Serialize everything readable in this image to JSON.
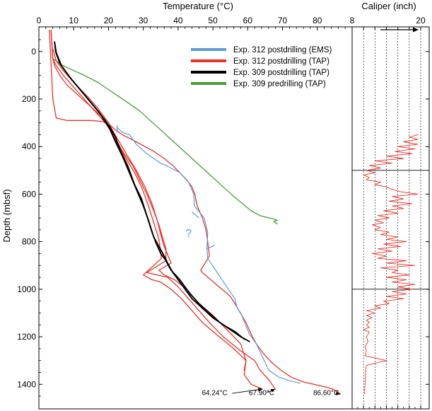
{
  "chart_data": [
    {
      "type": "line",
      "xlabel": "Temperature (°C)",
      "ylabel": "Depth (mbsf)",
      "xlim": [
        0,
        90
      ],
      "ylim": [
        1480,
        -90
      ],
      "x_ticks": [
        0,
        10,
        20,
        30,
        40,
        50,
        60,
        70,
        80
      ],
      "y_ticks": [
        0,
        200,
        400,
        600,
        800,
        1000,
        1200,
        1400
      ],
      "x_axis_position": "top",
      "grid": false,
      "legend_placement": "top-right",
      "series": [
        {
          "name": "Exp. 312 postdrilling (EMS)",
          "color": "#5b9bd5",
          "x": [
            22.5,
            24,
            26,
            28,
            31,
            35,
            38,
            40.5,
            43,
            44.5,
            44.7,
            47.5,
            48.5,
            48.3,
            48.5,
            56.3,
            57,
            58,
            60.5,
            62.5,
            66,
            69,
            72,
            75
          ],
          "y": [
            320,
            340,
            350,
            390,
            430,
            470,
            490,
            510,
            550,
            600,
            650,
            700,
            760,
            830,
            870,
            1040,
            1080,
            1100,
            1190,
            1230,
            1340,
            1370,
            1385,
            1395
          ]
        },
        {
          "name": "Exp. 312 postdrilling (TAP)",
          "color": "#e8312a",
          "lines": [
            {
              "x": [
                3.5,
                4,
                4.5,
                6,
                8,
                11,
                14,
                17,
                19.5,
                20.5,
                22,
                24,
                28,
                33,
                36,
                38.5,
                40.5,
                42.5,
                44,
                44.8,
                45.5,
                47,
                48,
                48.5,
                49,
                46.5,
                47,
                51,
                55,
                56.3,
                57.5,
                59.5,
                61,
                62.5,
                64.5,
                67,
                69.5,
                72.5,
                76,
                79,
                82,
                84.5,
                86.6
              ],
              "y": [
                -90,
                30,
                60,
                100,
                140,
                180,
                220,
                260,
                290,
                310,
                330,
                350,
                380,
                420,
                450,
                480,
                510,
                540,
                570,
                600,
                650,
                700,
                750,
                800,
                860,
                920,
                930,
                980,
                1030,
                1060,
                1090,
                1140,
                1190,
                1230,
                1270,
                1310,
                1340,
                1370,
                1390,
                1400,
                1410,
                1420,
                1440
              ]
            },
            {
              "x": [
                3.5,
                4,
                5,
                7,
                10,
                13,
                16,
                18.5,
                20,
                21,
                22.5,
                24.5,
                27,
                29,
                31,
                33,
                34.5,
                35.5,
                36.5,
                36.5,
                31,
                34,
                37,
                40,
                43,
                46,
                49,
                53,
                58,
                62,
                63.5,
                66,
                67.9
              ],
              "y": [
                -90,
                30,
                60,
                100,
                150,
                200,
                250,
                290,
                310,
                340,
                380,
                430,
                480,
                540,
                600,
                670,
                730,
                780,
                830,
                880,
                930,
                940,
                950,
                990,
                1040,
                1090,
                1140,
                1200,
                1260,
                1300,
                1340,
                1380,
                1420
              ]
            },
            {
              "x": [
                3,
                3.5,
                4,
                5,
                8,
                15,
                18.5,
                20,
                21.5,
                23,
                25,
                27.5,
                29.5,
                31.5,
                33,
                34.5,
                35.2,
                33,
                30,
                32.5,
                35,
                38,
                41,
                44,
                47,
                51,
                56,
                59.5,
                59,
                61,
                64.24
              ],
              "y": [
                -90,
                50,
                200,
                280,
                290,
                290,
                295,
                310,
                360,
                400,
                450,
                510,
                570,
                650,
                720,
                790,
                870,
                900,
                940,
                960,
                970,
                1000,
                1040,
                1090,
                1140,
                1190,
                1250,
                1300,
                1360,
                1400,
                1420
              ]
            },
            {
              "x": [
                4,
                5,
                7,
                10,
                14,
                17,
                19,
                20,
                21.5,
                23.5,
                25.5,
                28,
                30.5,
                32.5,
                34,
                35,
                36,
                38,
                34.5,
                36,
                39,
                42.5,
                46,
                50,
                54,
                58,
                59.5,
                59
              ],
              "y": [
                -10,
                40,
                80,
                130,
                190,
                240,
                280,
                300,
                340,
                390,
                440,
                500,
                570,
                640,
                710,
                770,
                820,
                890,
                920,
                940,
                960,
                1000,
                1060,
                1110,
                1170,
                1230,
                1300,
                1340
              ]
            }
          ]
        },
        {
          "name": "Exp. 309 postdrilling (TAP)",
          "color": "#000000",
          "lines": [
            {
              "x": [
                4.5,
                4.8,
                6,
                9,
                13,
                17,
                20.5,
                22,
                23.5,
                25.5,
                27.5,
                29.5,
                31,
                32.5,
                33.5,
                35,
                36.5,
                37.2,
                38,
                40.5,
                43.5,
                46,
                49,
                52,
                55,
                58,
                60.5
              ],
              "y": [
                -40,
                0,
                50,
                110,
                180,
                250,
                320,
                360,
                420,
                480,
                560,
                620,
                690,
                760,
                800,
                850,
                880,
                900,
                920,
                960,
                1020,
                1060,
                1100,
                1140,
                1170,
                1200,
                1220
              ]
            },
            {
              "x": [
                4.5,
                5,
                6.5,
                9.5,
                13.5,
                17.5,
                20.5,
                22,
                24,
                26,
                28,
                30,
                31.5,
                33,
                34.5,
                36,
                37,
                38.5,
                41,
                44,
                47,
                50,
                53,
                56.5,
                59
              ],
              "y": [
                -40,
                5,
                60,
                120,
                190,
                260,
                330,
                380,
                440,
                510,
                580,
                650,
                710,
                780,
                820,
                860,
                890,
                930,
                980,
                1040,
                1080,
                1120,
                1150,
                1180,
                1210
              ]
            }
          ]
        },
        {
          "name": "Exp. 309 predrilling (TAP)",
          "color": "#4a9a3a",
          "x": [
            4,
            7,
            10,
            13,
            17,
            20,
            23,
            26,
            29,
            32,
            35,
            38,
            41,
            44,
            47,
            50,
            53,
            56,
            58.5,
            61,
            63.5,
            66,
            67.5,
            68.5,
            67.5,
            68,
            68.5
          ],
          "y": [
            30,
            60,
            80,
            100,
            130,
            160,
            190,
            220,
            250,
            290,
            330,
            370,
            410,
            450,
            490,
            530,
            570,
            610,
            640,
            670,
            690,
            700,
            705,
            710,
            715,
            720,
            725
          ]
        }
      ],
      "annotations": [
        {
          "text": "?",
          "x": 43,
          "y": 780,
          "color": "#5b9bd5"
        },
        {
          "text": "64.24°C",
          "x": 50.5,
          "y": 1445
        },
        {
          "text": "67.90°C",
          "x": 64,
          "y": 1445
        },
        {
          "text": "86.60°C",
          "x": 82.5,
          "y": 1445
        }
      ]
    },
    {
      "type": "line",
      "xlabel": "Caliper (inch)",
      "xlim": [
        8,
        20
      ],
      "ylim": [
        1480,
        -90
      ],
      "x_ticks": [
        8,
        20
      ],
      "x_axis_position": "top",
      "grid": true,
      "series": [
        {
          "color": "#e8312a",
          "x": [
            19.5,
            18,
            19.5,
            17,
            19.5,
            16,
            19,
            15.5,
            18.5,
            14,
            17,
            12,
            15,
            11,
            13,
            10.5,
            12,
            10,
            11,
            10.5,
            13,
            12,
            14,
            15,
            16.5,
            19.5,
            15,
            17,
            14.5,
            18.5,
            15,
            17,
            13.5,
            16,
            12.5,
            14.5,
            12,
            13.5,
            11.5,
            13,
            12,
            14.5,
            13,
            16,
            14,
            17.5,
            13.5,
            16.5,
            12.5,
            15,
            11.5,
            14,
            12.5,
            17.5,
            14,
            19,
            13,
            16,
            15,
            18,
            14,
            17.5,
            15,
            19,
            16,
            18.5,
            15,
            17.5,
            14,
            17,
            13.5,
            14.5,
            12,
            13,
            10.5,
            12,
            10.5,
            11.5,
            10.5,
            11,
            10.5,
            11,
            10,
            11,
            10.5,
            10.8,
            10.3,
            10.5,
            10.3,
            14,
            10.5,
            10.4,
            10.3,
            10.2,
            10.2
          ],
          "y": [
            350,
            360,
            370,
            380,
            390,
            400,
            410,
            420,
            430,
            440,
            450,
            460,
            470,
            480,
            490,
            500,
            510,
            520,
            530,
            540,
            550,
            560,
            570,
            580,
            590,
            600,
            610,
            620,
            630,
            640,
            650,
            660,
            670,
            680,
            690,
            700,
            710,
            720,
            730,
            740,
            750,
            760,
            770,
            780,
            790,
            800,
            810,
            820,
            830,
            840,
            850,
            860,
            870,
            880,
            890,
            900,
            910,
            920,
            930,
            940,
            950,
            960,
            970,
            980,
            990,
            1000,
            1010,
            1020,
            1030,
            1040,
            1050,
            1060,
            1070,
            1080,
            1090,
            1100,
            1110,
            1120,
            1130,
            1140,
            1150,
            1160,
            1170,
            1180,
            1200,
            1220,
            1240,
            1260,
            1280,
            1300,
            1320,
            1340,
            1380,
            1420,
            1440
          ]
        }
      ]
    }
  ]
}
